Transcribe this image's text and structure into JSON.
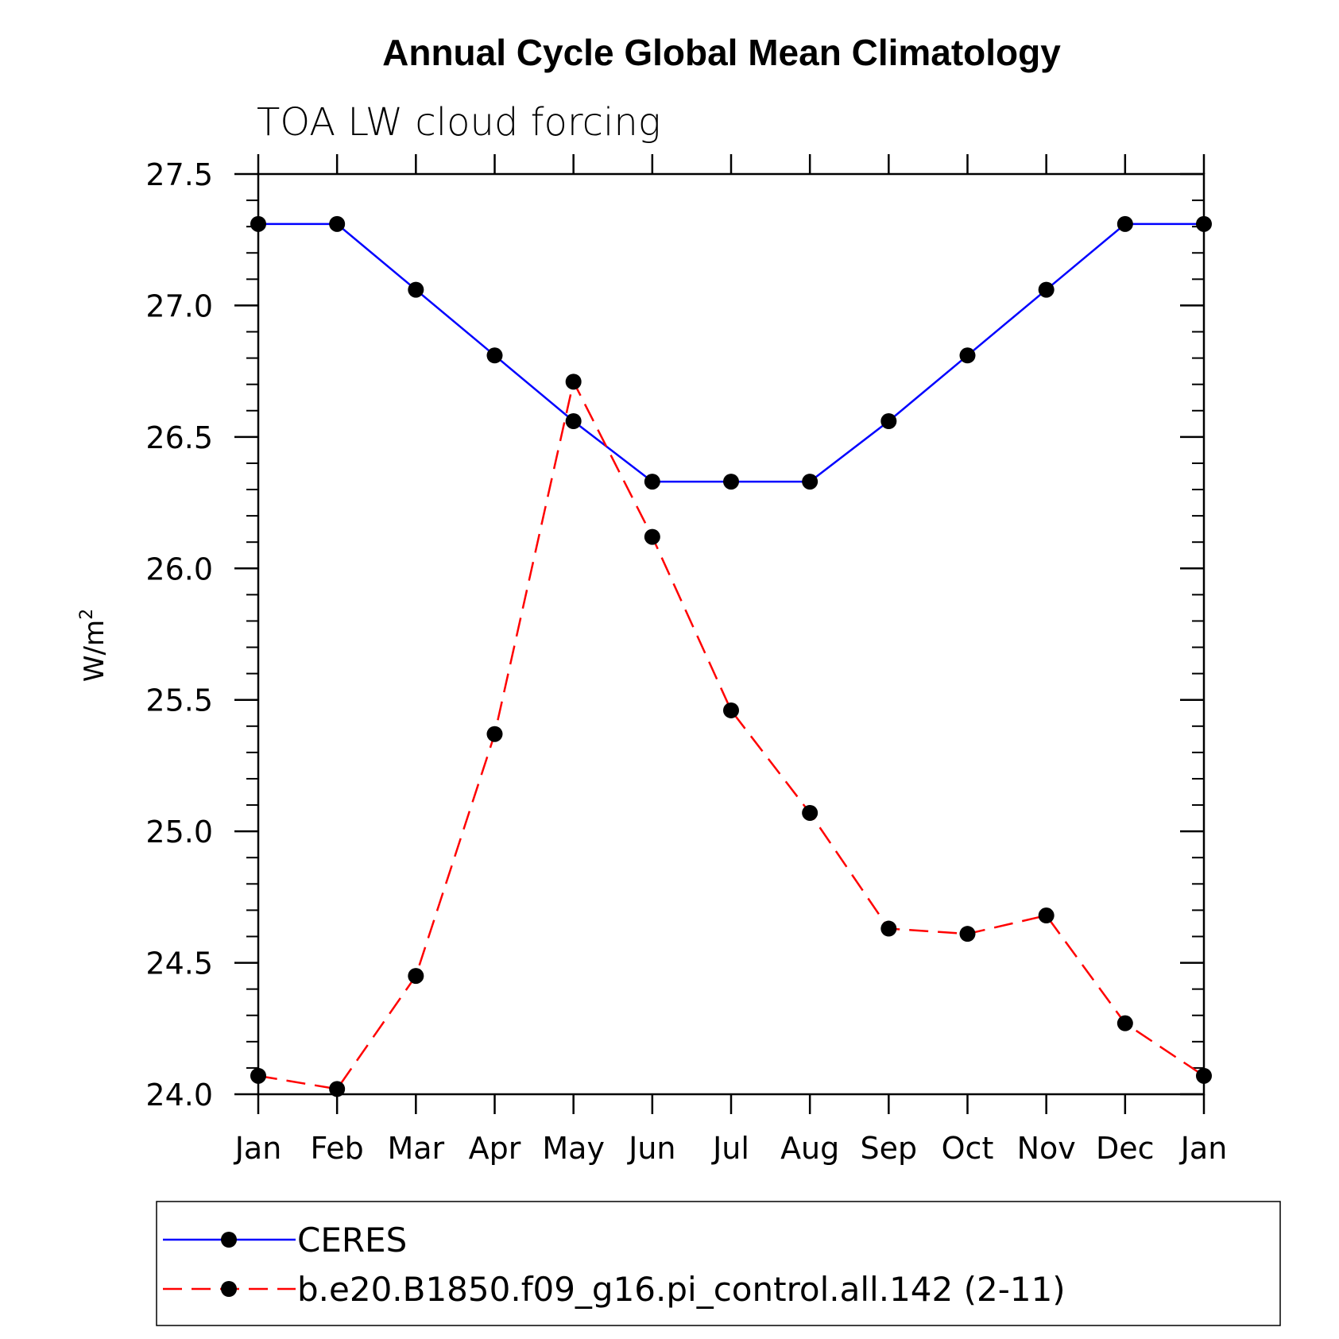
{
  "chart_data": {
    "type": "line",
    "title": "Annual Cycle Global Mean Climatology",
    "subtitle": "TOA LW cloud forcing",
    "ylabel": "W/m",
    "ylabel_sup": "2",
    "ylim": [
      24.0,
      27.5
    ],
    "yticks": [
      "24.0",
      "24.5",
      "25.0",
      "25.5",
      "26.0",
      "26.5",
      "27.0",
      "27.5"
    ],
    "categories": [
      "Jan",
      "Feb",
      "Mar",
      "Apr",
      "May",
      "Jun",
      "Jul",
      "Aug",
      "Sep",
      "Oct",
      "Nov",
      "Dec",
      "Jan"
    ],
    "series": [
      {
        "name": "CERES",
        "color": "#0000ff",
        "dash": "solid",
        "values": [
          27.31,
          27.31,
          27.06,
          26.81,
          26.56,
          26.33,
          26.33,
          26.33,
          26.56,
          26.81,
          27.06,
          27.31,
          27.31
        ]
      },
      {
        "name": "b.e20.B1850.f09_g16.pi_control.all.142 (2-11)",
        "color": "#ff0000",
        "dash": "dashed",
        "values": [
          24.07,
          24.02,
          24.45,
          25.37,
          26.71,
          26.12,
          25.46,
          25.07,
          24.63,
          24.61,
          24.68,
          24.27,
          24.07
        ]
      }
    ],
    "legend_position": "bottom",
    "grid": false
  }
}
